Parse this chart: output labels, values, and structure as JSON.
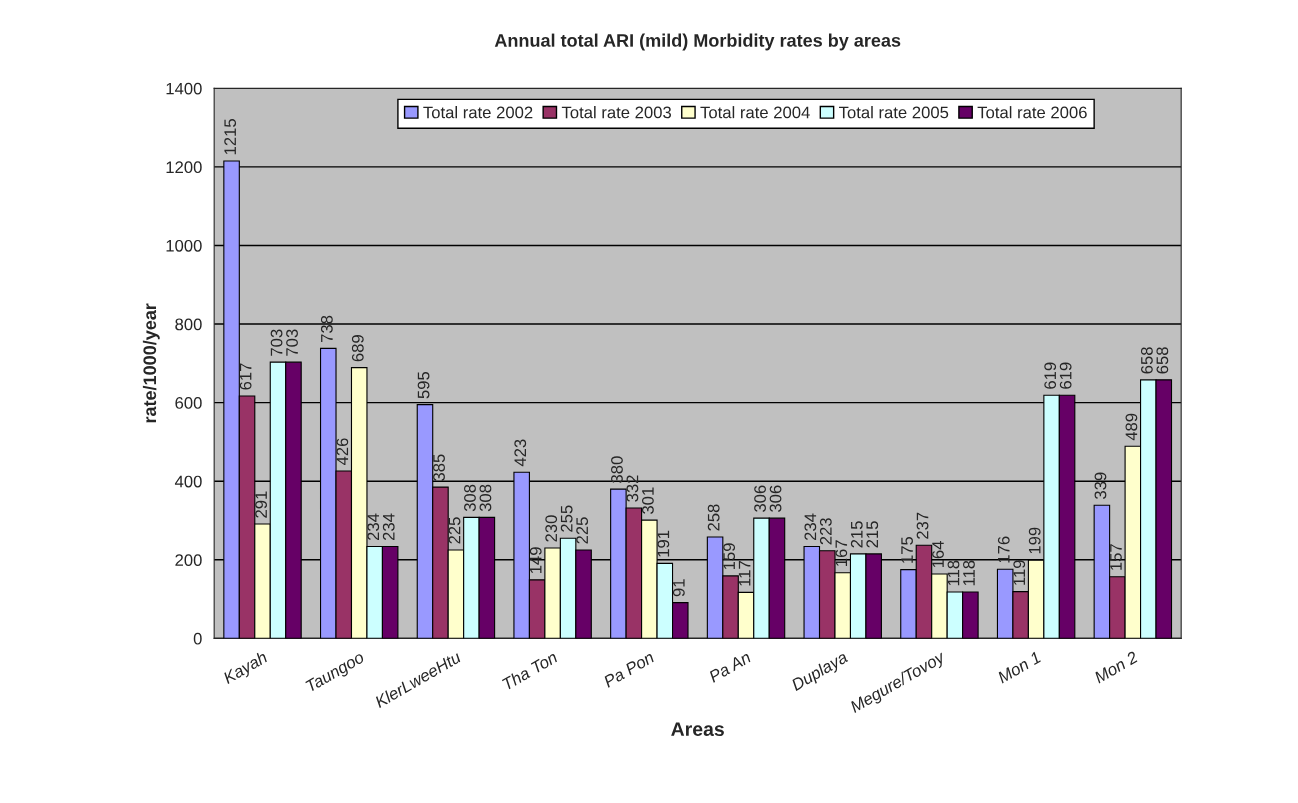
{
  "chart_data": {
    "type": "bar",
    "title": "Annual total ARI (mild) Morbidity rates by areas",
    "xlabel": "Areas",
    "ylabel": "rate/1000/year",
    "categories": [
      "Kayah",
      "Taungoo",
      "KlerLweeHtu",
      "Tha Ton",
      "Pa Pon",
      "Pa An",
      "Duplaya",
      "Megure/Tovoy",
      "Mon 1",
      "Mon 2"
    ],
    "series": [
      {
        "name": "Total rate 2002",
        "color": "#9999ff",
        "values": [
          1215,
          738,
          595,
          423,
          380,
          258,
          234,
          175,
          176,
          339
        ]
      },
      {
        "name": "Total rate 2003",
        "color": "#993366",
        "values": [
          617,
          426,
          385,
          149,
          332,
          159,
          223,
          237,
          119,
          157
        ]
      },
      {
        "name": "Total rate 2004",
        "color": "#ffffcc",
        "values": [
          291,
          689,
          225,
          230,
          301,
          117,
          167,
          164,
          199,
          489
        ]
      },
      {
        "name": "Total rate 2005",
        "color": "#ccffff",
        "values": [
          703,
          234,
          308,
          255,
          191,
          306,
          215,
          118,
          619,
          658
        ]
      },
      {
        "name": "Total rate 2006",
        "color": "#660066",
        "values": [
          703,
          234,
          308,
          225,
          91,
          306,
          215,
          118,
          619,
          658
        ]
      }
    ],
    "ylim": [
      0,
      1400
    ],
    "yticks": [
      0,
      200,
      400,
      600,
      800,
      1000,
      1200,
      1400
    ],
    "grid": "y",
    "legend": "top",
    "data_labels": true
  }
}
